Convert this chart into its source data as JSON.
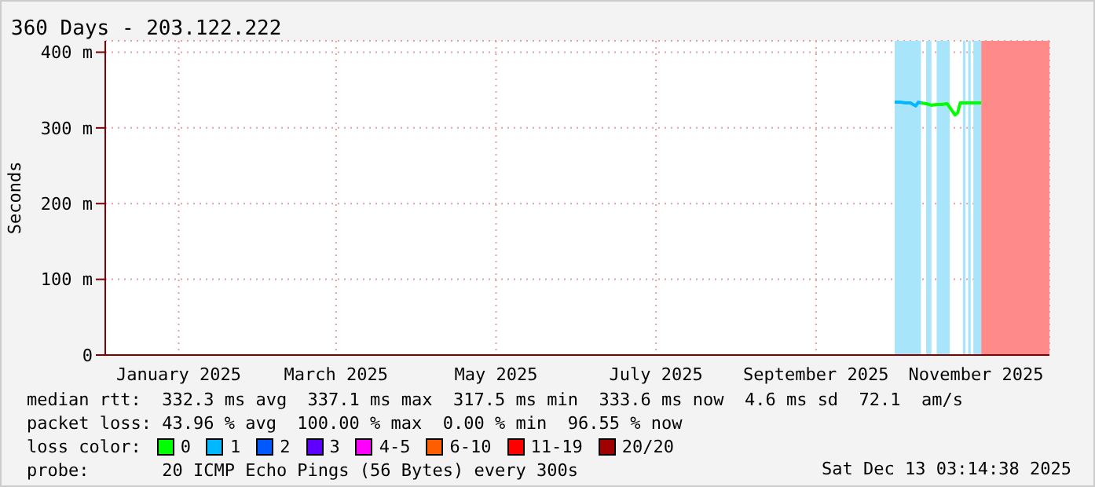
{
  "chart_data": {
    "type": "line",
    "title": "360 Days - 203.122.222",
    "ylabel": "Seconds",
    "xlim": [
      "2024-12-18",
      "2025-12-13"
    ],
    "xticks": [
      {
        "value": "2025-01-15",
        "label": "January 2025"
      },
      {
        "value": "2025-03-16",
        "label": "March 2025"
      },
      {
        "value": "2025-05-16",
        "label": "May 2025"
      },
      {
        "value": "2025-07-16",
        "label": "July 2025"
      },
      {
        "value": "2025-09-15",
        "label": "September 2025"
      },
      {
        "value": "2025-11-15",
        "label": "November 2025"
      }
    ],
    "ylim": [
      0,
      415
    ],
    "yticks": [
      0,
      {
        "value": 100,
        "label": "100 m"
      },
      {
        "value": 200,
        "label": "200 m"
      },
      {
        "value": 300,
        "label": "300 m"
      },
      {
        "value": 400,
        "label": "400 m"
      }
    ],
    "grid": true,
    "legend": "bottom",
    "legend_title": "loss color:",
    "series": [
      {
        "name": "0",
        "color": "#00ff00",
        "x": [
          "2025-10-25",
          "2025-10-27",
          "2025-10-29",
          "2025-10-31",
          "2025-11-02",
          "2025-11-04",
          "2025-11-06",
          "2025-11-07",
          "2025-11-08",
          "2025-11-09",
          "2025-11-11",
          "2025-11-13",
          "2025-11-15",
          "2025-11-17"
        ],
        "values": [
          333,
          332,
          330,
          331,
          331,
          332,
          322,
          317,
          320,
          333,
          333,
          333,
          333,
          333
        ]
      },
      {
        "name": "1",
        "color": "#00b8ff",
        "x": [
          "2025-10-15",
          "2025-10-17",
          "2025-10-19",
          "2025-10-21",
          "2025-10-23",
          "2025-10-24",
          "2025-10-25"
        ],
        "values": [
          334,
          334,
          333,
          333,
          329,
          334,
          333
        ]
      },
      {
        "name": "2",
        "color": "#0059ff"
      },
      {
        "name": "3",
        "color": "#5e00ff"
      },
      {
        "name": "4-5",
        "color": "#ff00ff"
      },
      {
        "name": "6-10",
        "color": "#ff5e00"
      },
      {
        "name": "11-19",
        "color": "#ff0000"
      },
      {
        "name": "20/20",
        "color": "#a10000"
      }
    ],
    "bands": [
      {
        "axis": "x",
        "from": "2025-10-15",
        "to": "2025-10-25",
        "color": "#a8e4fa"
      },
      {
        "axis": "x",
        "from": "2025-10-27",
        "to": "2025-10-29",
        "color": "#a8e4fa"
      },
      {
        "axis": "x",
        "from": "2025-10-31",
        "to": "2025-11-05",
        "color": "#a8e4fa"
      },
      {
        "axis": "x",
        "from": "2025-11-10",
        "to": "2025-11-11",
        "color": "#a8e4fa"
      },
      {
        "axis": "x",
        "from": "2025-11-12",
        "to": "2025-11-13",
        "color": "#a8e4fa"
      },
      {
        "axis": "x",
        "from": "2025-11-14",
        "to": "2025-11-17",
        "color": "#a8e4fa"
      },
      {
        "axis": "x",
        "from": "2025-11-17",
        "to": "2025-12-13",
        "color": "#ff8a8a"
      }
    ],
    "annotations": [
      "median rtt:  332.3 ms avg  337.1 ms max  317.5 ms min  333.6 ms now  4.6 ms sd  72.1  am/s",
      "packet loss: 43.96 % avg  100.00 % max  0.00 % min  96.55 % now",
      "probe:       20 ICMP Echo Pings (56 Bytes) every 300s",
      "Sat Dec 13 03:14:38 2025"
    ]
  }
}
